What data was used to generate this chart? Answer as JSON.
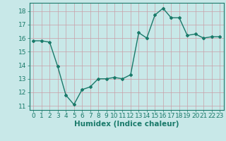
{
  "x": [
    0,
    1,
    2,
    3,
    4,
    5,
    6,
    7,
    8,
    9,
    10,
    11,
    12,
    13,
    14,
    15,
    16,
    17,
    18,
    19,
    20,
    21,
    22,
    23
  ],
  "y": [
    15.8,
    15.8,
    15.7,
    13.9,
    11.8,
    11.1,
    12.2,
    12.4,
    13.0,
    13.0,
    13.1,
    13.0,
    13.3,
    16.4,
    16.0,
    17.7,
    18.2,
    17.5,
    17.5,
    16.2,
    16.3,
    16.0,
    16.1,
    16.1
  ],
  "line_color": "#1a7a6a",
  "marker": "D",
  "marker_size": 2.0,
  "bg_color": "#c8e8e8",
  "grid_color": "#c8a0a8",
  "xlabel": "Humidex (Indice chaleur)",
  "ylim": [
    10.7,
    18.6
  ],
  "xlim": [
    -0.5,
    23.5
  ],
  "yticks": [
    11,
    12,
    13,
    14,
    15,
    16,
    17,
    18
  ],
  "xticks": [
    0,
    1,
    2,
    3,
    4,
    5,
    6,
    7,
    8,
    9,
    10,
    11,
    12,
    13,
    14,
    15,
    16,
    17,
    18,
    19,
    20,
    21,
    22,
    23
  ],
  "xlabel_fontsize": 7.5,
  "tick_fontsize": 6.5,
  "linewidth": 1.0
}
